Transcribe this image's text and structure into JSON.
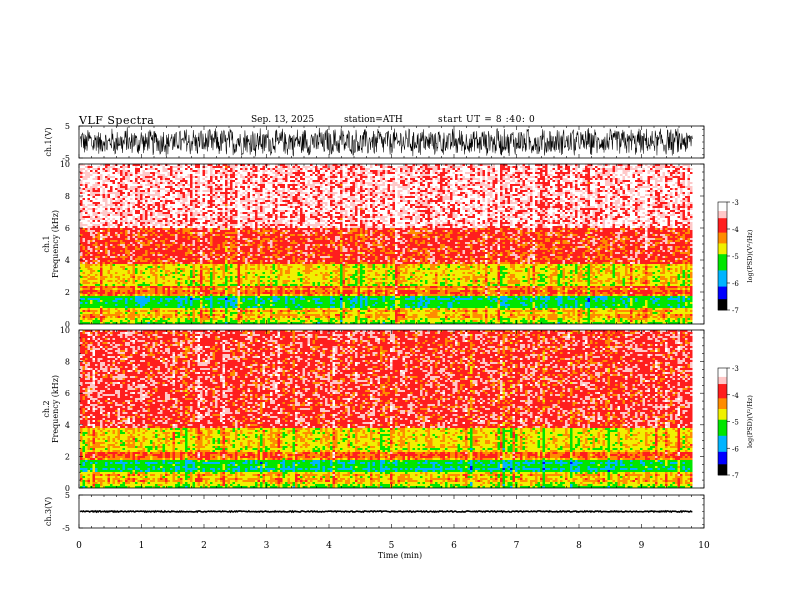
{
  "header": {
    "title": "VLF  Spectra",
    "date": "Sep. 13, 2025",
    "station": "station=ATH",
    "start_ut": "start  UT  =   8  :40: 0"
  },
  "colors": {
    "white": "#ffffff",
    "pink": "#ffc8c8",
    "red": "#ff1e1e",
    "orange": "#ff8c00",
    "yellow": "#f0f000",
    "green": "#00e600",
    "cyan": "#00b4ff",
    "blue": "#0000ff",
    "black": "#000000"
  },
  "chart_data": [
    {
      "type": "line",
      "name": "ch1-waveform",
      "ylabel": "ch.1(V)",
      "ylim": [
        -5,
        5
      ],
      "yticks": [
        "5",
        "-5"
      ],
      "xlim": [
        0,
        9.83
      ],
      "description_level": "dense noise waveform filling roughly -4 to +4 V"
    },
    {
      "type": "heatmap",
      "name": "ch1-spectrogram",
      "ylabel_line1": "ch.1",
      "ylabel_line2": "Frequency  (kHz)",
      "ylim": [
        0,
        10
      ],
      "yticks": [
        "0",
        "2",
        "4",
        "6",
        "8",
        "10"
      ],
      "xlim": [
        0,
        9.83
      ],
      "bands": [
        {
          "from_khz": 0.0,
          "to_khz": 0.2,
          "level": -4.8
        },
        {
          "from_khz": 0.2,
          "to_khz": 1.0,
          "level": -4.4
        },
        {
          "from_khz": 1.0,
          "to_khz": 1.7,
          "level": -5.3
        },
        {
          "from_khz": 1.7,
          "to_khz": 2.4,
          "level": -4.1
        },
        {
          "from_khz": 2.4,
          "to_khz": 3.8,
          "level": -4.6
        },
        {
          "from_khz": 3.8,
          "to_khz": 6.0,
          "level": -3.9
        },
        {
          "from_khz": 6.0,
          "to_khz": 10.0,
          "level": -3.4
        }
      ],
      "colorbar": {
        "label": "log(PSD)(V²/Hz)",
        "ticks": [
          "-3",
          "-4",
          "-5",
          "-6",
          "-7"
        ],
        "range": [
          -7,
          -3
        ]
      }
    },
    {
      "type": "heatmap",
      "name": "ch2-spectrogram",
      "ylabel_line1": "ch.2",
      "ylabel_line2": "Frequency  (kHz)",
      "ylim": [
        0,
        10
      ],
      "yticks": [
        "0",
        "2",
        "4",
        "6",
        "8",
        "10"
      ],
      "xlim": [
        0,
        9.83
      ],
      "bands": [
        {
          "from_khz": 0.0,
          "to_khz": 0.2,
          "level": -4.8
        },
        {
          "from_khz": 0.2,
          "to_khz": 1.0,
          "level": -4.4
        },
        {
          "from_khz": 1.0,
          "to_khz": 1.8,
          "level": -5.3
        },
        {
          "from_khz": 1.8,
          "to_khz": 2.3,
          "level": -4.1
        },
        {
          "from_khz": 2.3,
          "to_khz": 3.8,
          "level": -4.6
        },
        {
          "from_khz": 3.8,
          "to_khz": 10.0,
          "level": -3.8
        }
      ],
      "colorbar": {
        "label": "log(PSD)(V²/Hz)",
        "ticks": [
          "-3",
          "-4",
          "-5",
          "-6",
          "-7"
        ],
        "range": [
          -7,
          -3
        ]
      }
    },
    {
      "type": "line",
      "name": "ch3-waveform",
      "ylabel": "ch.3(V)",
      "ylim": [
        -5,
        5
      ],
      "yticks": [
        "5",
        "-5"
      ],
      "xlim": [
        0,
        9.83
      ],
      "baseline_v": 0
    }
  ],
  "time_axis": {
    "xlabel": "Time  (min)",
    "range": [
      0,
      10
    ],
    "ticks": [
      "0",
      "1",
      "2",
      "3",
      "4",
      "5",
      "6",
      "7",
      "8",
      "9",
      "10"
    ]
  }
}
